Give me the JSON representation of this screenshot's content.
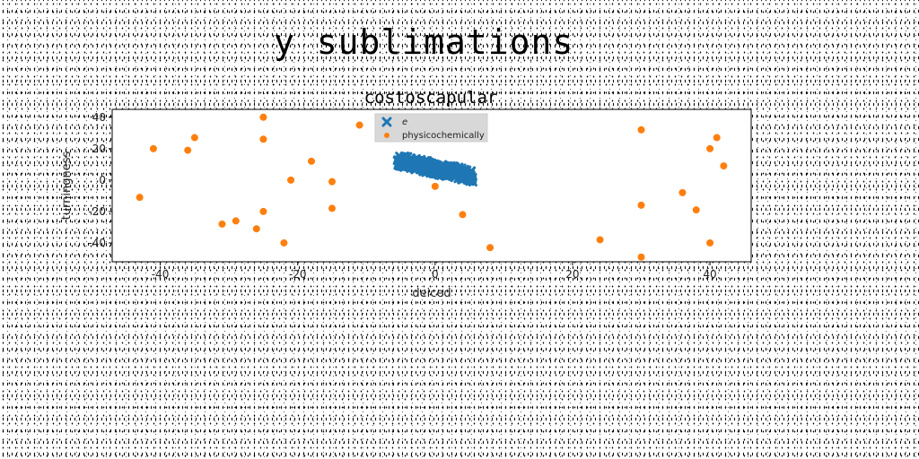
{
  "page": {
    "title": "y sublimations"
  },
  "chart_data": {
    "type": "scatter",
    "title": "costoscapular",
    "xlabel": "deiced",
    "ylabel": "turningness",
    "xlim": [
      -47,
      46
    ],
    "ylim": [
      -52,
      45
    ],
    "xticks": [
      -40,
      -20,
      0,
      20,
      40
    ],
    "yticks": [
      -40,
      -20,
      0,
      20,
      40
    ],
    "legend_position": "top-center",
    "grid": false,
    "series": [
      {
        "name": "e",
        "marker": "x",
        "color": "#1f77b4",
        "band": {
          "x_start": -5.5,
          "y_start": 12.5,
          "x_end": 5.5,
          "y_end": 2.5,
          "thickness": 4
        }
      },
      {
        "name": "physicochemically",
        "marker": "circle",
        "color": "#ff7f0e",
        "points": [
          [
            -43,
            -11
          ],
          [
            -41,
            20
          ],
          [
            -36,
            19
          ],
          [
            -35,
            27
          ],
          [
            -31,
            -28
          ],
          [
            -29,
            -26
          ],
          [
            -26,
            -31
          ],
          [
            -25,
            40
          ],
          [
            -25,
            26
          ],
          [
            -25,
            -20
          ],
          [
            -22,
            -40
          ],
          [
            -21,
            0
          ],
          [
            -18,
            12
          ],
          [
            -15,
            -1
          ],
          [
            -15,
            -18
          ],
          [
            -11,
            35
          ],
          [
            0,
            -4
          ],
          [
            4,
            -22
          ],
          [
            8,
            -43
          ],
          [
            24,
            -38
          ],
          [
            30,
            32
          ],
          [
            30,
            -16
          ],
          [
            30,
            -49
          ],
          [
            36,
            -8
          ],
          [
            38,
            -19
          ],
          [
            40,
            20
          ],
          [
            40,
            -40
          ],
          [
            41,
            27
          ],
          [
            42,
            9
          ]
        ]
      }
    ]
  }
}
